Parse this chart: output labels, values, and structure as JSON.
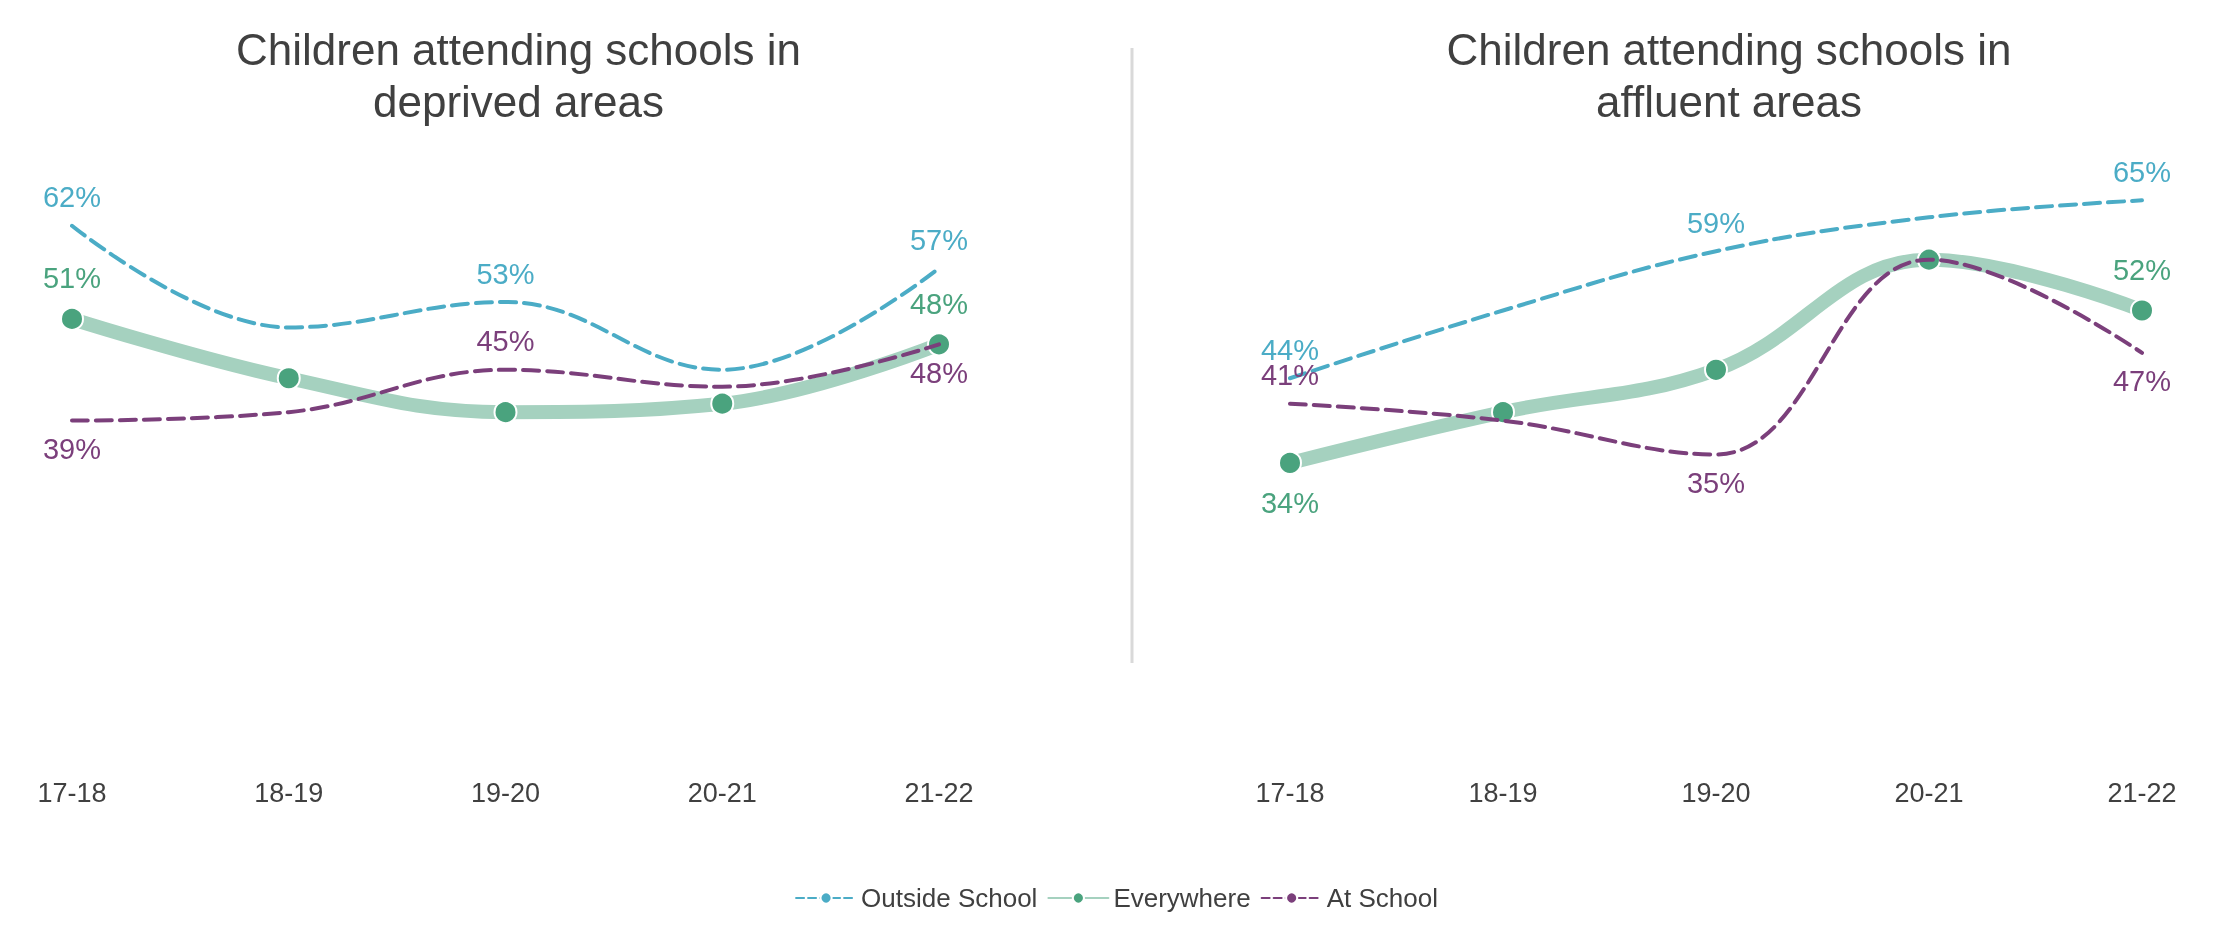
{
  "chart_data": [
    {
      "type": "line",
      "title": "Children attending schools in\ndeprived areas",
      "categories": [
        "17-18",
        "18-19",
        "19-20",
        "20-21",
        "21-22"
      ],
      "legend": "bottom",
      "line_style": "dashed",
      "marker": "none",
      "series": [
        {
          "name": "Outside School",
          "color": "#4bacc6",
          "values": [
            62,
            50,
            53,
            45,
            57
          ],
          "value_labels": [
            "62%",
            null,
            "53%",
            null,
            "57%"
          ]
        },
        {
          "name": "Everywhere",
          "color": "#4aa37e",
          "type": "line",
          "line_style": "solid",
          "marker": "circle",
          "values": [
            51,
            44,
            40,
            41,
            48
          ],
          "value_labels": [
            "51%",
            null,
            null,
            null,
            "48%"
          ]
        },
        {
          "name": "At School",
          "color": "#7b3f7b",
          "values": [
            39,
            40,
            45,
            43,
            48
          ],
          "value_labels": [
            "39%",
            null,
            "45%",
            null,
            "48%"
          ]
        }
      ]
    },
    {
      "type": "line",
      "title": "Children attending schools in\naffluent areas",
      "categories": [
        "17-18",
        "18-19",
        "19-20",
        "20-21",
        "21-22"
      ],
      "line_style": "dashed",
      "marker": "none",
      "series": [
        {
          "name": "Outside School",
          "color": "#4bacc6",
          "values": [
            44,
            52,
            59,
            63,
            65
          ],
          "value_labels": [
            "44%",
            null,
            "59%",
            null,
            "65%"
          ]
        },
        {
          "name": "Everywhere",
          "color": "#4aa37e",
          "type": "line",
          "line_style": "solid",
          "marker": "circle",
          "values": [
            34,
            40,
            45,
            58,
            52
          ],
          "value_labels": [
            "34%",
            null,
            null,
            null,
            "52%"
          ]
        },
        {
          "name": "At School",
          "color": "#7b3f7b",
          "values": [
            41,
            39,
            35,
            58,
            47
          ],
          "value_labels": [
            "41%",
            null,
            "35%",
            null,
            "47%"
          ]
        }
      ]
    }
  ]
}
